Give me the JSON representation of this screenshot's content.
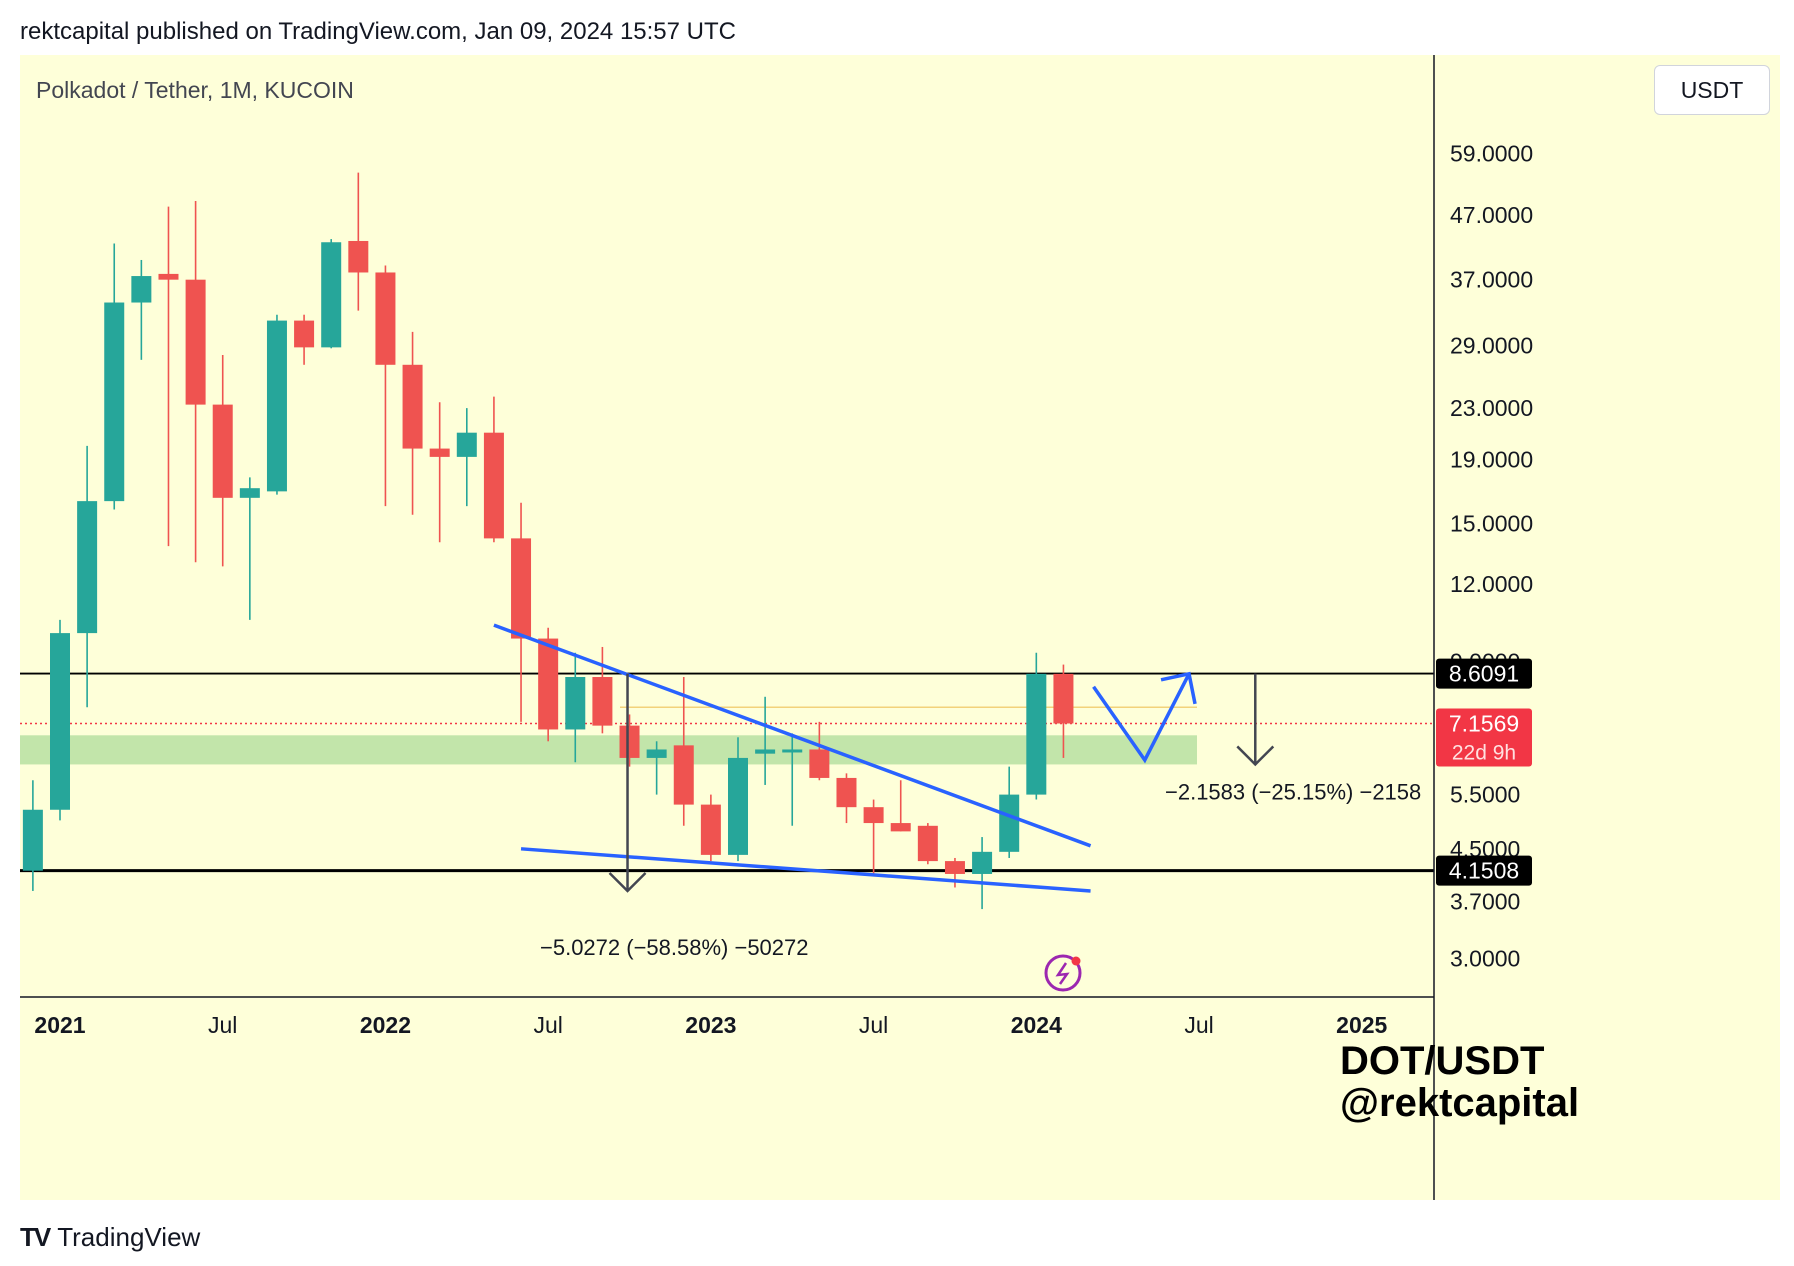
{
  "header": {
    "published": "rektcapital published on TradingView.com, Jan 09, 2024 15:57 UTC"
  },
  "chart_data": {
    "type": "candlestick",
    "title": "Polkadot / Tether, 1M, KUCOIN",
    "currency_button": "USDT",
    "y_scale": "log",
    "ylim": [
      2.6,
      85
    ],
    "y_ticks": [
      {
        "value": 59,
        "label": "59.0000"
      },
      {
        "value": 47,
        "label": "47.0000"
      },
      {
        "value": 37,
        "label": "37.0000"
      },
      {
        "value": 29,
        "label": "29.0000"
      },
      {
        "value": 23,
        "label": "23.0000"
      },
      {
        "value": 19,
        "label": "19.0000"
      },
      {
        "value": 15,
        "label": "15.0000"
      },
      {
        "value": 12,
        "label": "12.0000"
      },
      {
        "value": 9,
        "label": "9.0000"
      },
      {
        "value": 5.5,
        "label": "5.5000"
      },
      {
        "value": 4.5,
        "label": "4.5000"
      },
      {
        "value": 3.7,
        "label": "3.7000"
      },
      {
        "value": 3,
        "label": "3.0000"
      }
    ],
    "x_ticks": [
      {
        "date": "2021-01",
        "label": "2021",
        "bold": true
      },
      {
        "date": "2021-07",
        "label": "Jul",
        "bold": false
      },
      {
        "date": "2022-01",
        "label": "2022",
        "bold": true
      },
      {
        "date": "2022-07",
        "label": "Jul",
        "bold": false
      },
      {
        "date": "2023-01",
        "label": "2023",
        "bold": true
      },
      {
        "date": "2023-07",
        "label": "Jul",
        "bold": false
      },
      {
        "date": "2024-01",
        "label": "2024",
        "bold": true
      },
      {
        "date": "2024-07",
        "label": "Jul",
        "bold": false
      },
      {
        "date": "2025-01",
        "label": "2025",
        "bold": true
      }
    ],
    "candles": [
      {
        "date": "2020-12",
        "open": 4.15,
        "high": 5.8,
        "low": 3.85,
        "close": 5.2
      },
      {
        "date": "2021-01",
        "open": 5.2,
        "high": 10.5,
        "low": 5.0,
        "close": 10.0
      },
      {
        "date": "2021-02",
        "open": 10.0,
        "high": 20.0,
        "low": 7.6,
        "close": 16.3
      },
      {
        "date": "2021-03",
        "open": 16.3,
        "high": 42.3,
        "low": 15.8,
        "close": 34.0
      },
      {
        "date": "2021-04",
        "open": 34.0,
        "high": 39.8,
        "low": 27.5,
        "close": 37.5
      },
      {
        "date": "2021-05",
        "open": 37.8,
        "high": 48.5,
        "low": 13.8,
        "close": 37.0
      },
      {
        "date": "2021-06",
        "open": 37.0,
        "high": 49.5,
        "low": 13.0,
        "close": 23.3
      },
      {
        "date": "2021-07",
        "open": 23.3,
        "high": 28.0,
        "low": 12.8,
        "close": 16.5
      },
      {
        "date": "2021-08",
        "open": 16.5,
        "high": 17.8,
        "low": 10.5,
        "close": 17.1
      },
      {
        "date": "2021-09",
        "open": 16.9,
        "high": 32.5,
        "low": 16.7,
        "close": 31.8
      },
      {
        "date": "2021-10",
        "open": 31.8,
        "high": 32.5,
        "low": 27.0,
        "close": 28.8
      },
      {
        "date": "2021-11",
        "open": 28.8,
        "high": 43.0,
        "low": 28.7,
        "close": 42.5
      },
      {
        "date": "2021-12",
        "open": 42.7,
        "high": 55.0,
        "low": 33.0,
        "close": 38.0
      },
      {
        "date": "2022-01",
        "open": 38.0,
        "high": 39.0,
        "low": 16.0,
        "close": 27.0
      },
      {
        "date": "2022-02",
        "open": 27.0,
        "high": 30.5,
        "low": 15.5,
        "close": 19.8
      },
      {
        "date": "2022-03",
        "open": 19.8,
        "high": 23.5,
        "low": 14.0,
        "close": 19.2
      },
      {
        "date": "2022-04",
        "open": 19.2,
        "high": 23.0,
        "low": 16.0,
        "close": 21.0
      },
      {
        "date": "2022-05",
        "open": 21.0,
        "high": 24.0,
        "low": 14.0,
        "close": 14.2
      },
      {
        "date": "2022-06",
        "open": 14.2,
        "high": 16.2,
        "low": 7.2,
        "close": 9.8
      },
      {
        "date": "2022-07",
        "open": 9.8,
        "high": 10.2,
        "low": 6.7,
        "close": 7.0
      },
      {
        "date": "2022-08",
        "open": 7.0,
        "high": 9.3,
        "low": 6.2,
        "close": 8.5
      },
      {
        "date": "2022-09",
        "open": 8.5,
        "high": 9.5,
        "low": 6.9,
        "close": 7.1
      },
      {
        "date": "2022-10",
        "open": 7.1,
        "high": 7.4,
        "low": 6.1,
        "close": 6.3
      },
      {
        "date": "2022-11",
        "open": 6.3,
        "high": 6.7,
        "low": 5.5,
        "close": 6.5
      },
      {
        "date": "2022-12",
        "open": 6.6,
        "high": 8.5,
        "low": 4.9,
        "close": 5.3
      },
      {
        "date": "2023-01",
        "open": 5.3,
        "high": 5.5,
        "low": 4.3,
        "close": 4.4
      },
      {
        "date": "2023-02",
        "open": 4.4,
        "high": 6.8,
        "low": 4.3,
        "close": 6.3
      },
      {
        "date": "2023-03",
        "open": 6.4,
        "high": 7.9,
        "low": 5.7,
        "close": 6.5
      },
      {
        "date": "2023-04",
        "open": 6.5,
        "high": 6.9,
        "low": 4.9,
        "close": 6.5
      },
      {
        "date": "2023-05",
        "open": 6.5,
        "high": 7.2,
        "low": 5.8,
        "close": 5.85
      },
      {
        "date": "2023-06",
        "open": 5.85,
        "high": 5.95,
        "low": 4.95,
        "close": 5.25
      },
      {
        "date": "2023-07",
        "open": 5.25,
        "high": 5.4,
        "low": 4.1,
        "close": 4.95
      },
      {
        "date": "2023-08",
        "open": 4.95,
        "high": 5.8,
        "low": 4.8,
        "close": 4.8
      },
      {
        "date": "2023-09",
        "open": 4.9,
        "high": 4.95,
        "low": 4.25,
        "close": 4.3
      },
      {
        "date": "2023-10",
        "open": 4.3,
        "high": 4.35,
        "low": 3.9,
        "close": 4.1
      },
      {
        "date": "2023-11",
        "open": 4.1,
        "high": 4.7,
        "low": 3.6,
        "close": 4.45
      },
      {
        "date": "2023-12",
        "open": 4.45,
        "high": 6.1,
        "low": 4.35,
        "close": 5.5
      },
      {
        "date": "2024-01",
        "open": 5.5,
        "high": 9.3,
        "low": 5.4,
        "close": 8.6
      },
      {
        "date": "2024-02",
        "open": 8.6,
        "high": 8.9,
        "low": 6.3,
        "close": 7.1569
      }
    ],
    "horizontal_levels": [
      {
        "value": 8.6091,
        "label": "8.6091",
        "color": "#000000"
      },
      {
        "value": 4.1508,
        "label": "4.1508",
        "color": "#000000"
      }
    ],
    "current_price": {
      "value": 7.1569,
      "label": "7.1569",
      "countdown": "22d 9h",
      "color": "#f23645"
    },
    "support_zone": {
      "from": 6.15,
      "to": 6.85,
      "color": "#b7e1a1"
    },
    "measurements": [
      {
        "label": "−5.0272 (−58.58%) −50272"
      },
      {
        "label": "−2.1583 (−25.15%) −2158"
      }
    ],
    "watermark": [
      "DOT/USDT",
      "@rektcapital"
    ],
    "colors": {
      "up": "#26a69a",
      "down": "#ef5350",
      "trendline": "#2962ff",
      "background": "#feffd9"
    }
  },
  "footer": {
    "brand": "TradingView",
    "logo": "TV"
  }
}
